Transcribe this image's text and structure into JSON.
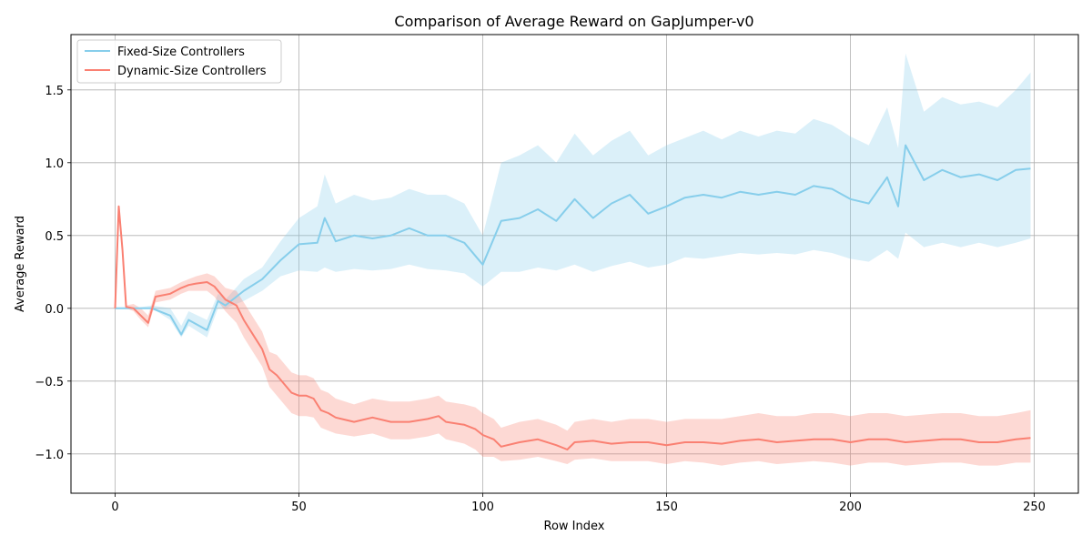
{
  "chart_data": {
    "type": "line",
    "title": "Comparison of Average Reward on GapJumper-v0",
    "xlabel": "Row Index",
    "ylabel": "Average Reward",
    "xlim": [
      -12,
      262
    ],
    "ylim": [
      -1.27,
      1.88
    ],
    "xticks": [
      0,
      50,
      100,
      150,
      200,
      250
    ],
    "yticks": [
      -1.0,
      -0.5,
      0.0,
      0.5,
      1.0,
      1.5
    ],
    "xtick_labels": [
      "0",
      "50",
      "100",
      "150",
      "200",
      "250"
    ],
    "ytick_labels": [
      "−1.0",
      "−0.5",
      "0.0",
      "0.5",
      "1.0",
      "1.5"
    ],
    "grid": true,
    "legend_position": "top-left",
    "colors": {
      "fixed_line": "#87ceeb",
      "fixed_band": "#87ceeb",
      "dynamic_line": "#fa8072",
      "dynamic_band": "#fa8072"
    },
    "series": [
      {
        "name": "Fixed-Size Controllers",
        "x": [
          0,
          5,
          10,
          15,
          18,
          20,
          25,
          28,
          30,
          35,
          40,
          45,
          50,
          55,
          57,
          60,
          65,
          70,
          75,
          80,
          85,
          90,
          95,
          100,
          105,
          110,
          115,
          120,
          125,
          130,
          135,
          140,
          145,
          150,
          155,
          160,
          165,
          170,
          175,
          180,
          185,
          190,
          195,
          200,
          205,
          210,
          213,
          215,
          220,
          225,
          230,
          235,
          240,
          245,
          249
        ],
        "values": [
          0.0,
          0.0,
          0.0,
          -0.05,
          -0.18,
          -0.08,
          -0.15,
          0.05,
          0.02,
          0.12,
          0.2,
          0.33,
          0.44,
          0.45,
          0.62,
          0.46,
          0.5,
          0.48,
          0.5,
          0.55,
          0.5,
          0.5,
          0.45,
          0.3,
          0.6,
          0.62,
          0.68,
          0.6,
          0.75,
          0.62,
          0.72,
          0.78,
          0.65,
          0.7,
          0.76,
          0.78,
          0.76,
          0.8,
          0.78,
          0.8,
          0.78,
          0.84,
          0.82,
          0.75,
          0.72,
          0.9,
          0.7,
          1.12,
          0.88,
          0.95,
          0.9,
          0.92,
          0.88,
          0.95,
          0.96
        ],
        "lower": [
          0.0,
          0.0,
          0.0,
          -0.08,
          -0.2,
          -0.12,
          -0.2,
          0.0,
          0.0,
          0.05,
          0.12,
          0.22,
          0.26,
          0.25,
          0.28,
          0.25,
          0.27,
          0.26,
          0.27,
          0.3,
          0.27,
          0.26,
          0.24,
          0.15,
          0.25,
          0.25,
          0.28,
          0.26,
          0.3,
          0.25,
          0.29,
          0.32,
          0.28,
          0.3,
          0.35,
          0.34,
          0.36,
          0.38,
          0.37,
          0.38,
          0.37,
          0.4,
          0.38,
          0.34,
          0.32,
          0.4,
          0.34,
          0.52,
          0.42,
          0.45,
          0.42,
          0.45,
          0.42,
          0.45,
          0.48
        ],
        "upper": [
          0.0,
          0.0,
          0.02,
          0.0,
          -0.12,
          -0.02,
          -0.08,
          0.1,
          0.06,
          0.2,
          0.28,
          0.46,
          0.62,
          0.7,
          0.92,
          0.72,
          0.78,
          0.74,
          0.76,
          0.82,
          0.78,
          0.78,
          0.72,
          0.5,
          1.0,
          1.05,
          1.12,
          1.0,
          1.2,
          1.05,
          1.15,
          1.22,
          1.05,
          1.12,
          1.17,
          1.22,
          1.16,
          1.22,
          1.18,
          1.22,
          1.2,
          1.3,
          1.26,
          1.18,
          1.12,
          1.38,
          1.1,
          1.75,
          1.35,
          1.45,
          1.4,
          1.42,
          1.38,
          1.5,
          1.62
        ]
      },
      {
        "name": "Dynamic-Size Controllers",
        "x": [
          0,
          1,
          2,
          3,
          5,
          7,
          9,
          11,
          15,
          18,
          20,
          22,
          25,
          27,
          30,
          33,
          35,
          38,
          40,
          42,
          44,
          46,
          48,
          50,
          52,
          54,
          56,
          58,
          60,
          65,
          70,
          75,
          80,
          85,
          88,
          90,
          95,
          98,
          100,
          103,
          105,
          110,
          115,
          120,
          123,
          125,
          130,
          135,
          140,
          145,
          150,
          155,
          160,
          165,
          170,
          175,
          180,
          185,
          190,
          195,
          200,
          205,
          210,
          215,
          220,
          225,
          230,
          235,
          240,
          245,
          249
        ],
        "values": [
          0.0,
          0.7,
          0.4,
          0.01,
          0.0,
          -0.05,
          -0.1,
          0.08,
          0.1,
          0.14,
          0.16,
          0.17,
          0.18,
          0.15,
          0.06,
          0.02,
          -0.08,
          -0.2,
          -0.28,
          -0.42,
          -0.46,
          -0.52,
          -0.58,
          -0.6,
          -0.6,
          -0.62,
          -0.7,
          -0.72,
          -0.75,
          -0.78,
          -0.75,
          -0.78,
          -0.78,
          -0.76,
          -0.74,
          -0.78,
          -0.8,
          -0.83,
          -0.87,
          -0.9,
          -0.95,
          -0.92,
          -0.9,
          -0.94,
          -0.97,
          -0.92,
          -0.91,
          -0.93,
          -0.92,
          -0.92,
          -0.94,
          -0.92,
          -0.92,
          -0.93,
          -0.91,
          -0.9,
          -0.92,
          -0.91,
          -0.9,
          -0.9,
          -0.92,
          -0.9,
          -0.9,
          -0.92,
          -0.91,
          -0.9,
          -0.9,
          -0.92,
          -0.92,
          -0.9,
          -0.89
        ],
        "lower": [
          0.0,
          0.7,
          0.4,
          0.0,
          -0.02,
          -0.08,
          -0.13,
          0.04,
          0.06,
          0.1,
          0.12,
          0.12,
          0.12,
          0.08,
          -0.02,
          -0.1,
          -0.2,
          -0.32,
          -0.4,
          -0.54,
          -0.6,
          -0.66,
          -0.72,
          -0.74,
          -0.74,
          -0.75,
          -0.82,
          -0.84,
          -0.86,
          -0.88,
          -0.86,
          -0.9,
          -0.9,
          -0.88,
          -0.86,
          -0.9,
          -0.93,
          -0.97,
          -1.02,
          -1.02,
          -1.05,
          -1.04,
          -1.02,
          -1.05,
          -1.07,
          -1.04,
          -1.03,
          -1.05,
          -1.05,
          -1.05,
          -1.07,
          -1.05,
          -1.06,
          -1.08,
          -1.06,
          -1.05,
          -1.07,
          -1.06,
          -1.05,
          -1.06,
          -1.08,
          -1.06,
          -1.06,
          -1.08,
          -1.07,
          -1.06,
          -1.06,
          -1.08,
          -1.08,
          -1.06,
          -1.06
        ],
        "upper": [
          0.0,
          0.7,
          0.4,
          0.02,
          0.03,
          0.0,
          -0.05,
          0.12,
          0.14,
          0.18,
          0.2,
          0.22,
          0.24,
          0.22,
          0.14,
          0.12,
          0.04,
          -0.08,
          -0.16,
          -0.3,
          -0.32,
          -0.38,
          -0.44,
          -0.46,
          -0.46,
          -0.48,
          -0.56,
          -0.58,
          -0.62,
          -0.66,
          -0.62,
          -0.64,
          -0.64,
          -0.62,
          -0.6,
          -0.64,
          -0.66,
          -0.68,
          -0.72,
          -0.76,
          -0.82,
          -0.78,
          -0.76,
          -0.8,
          -0.84,
          -0.78,
          -0.76,
          -0.78,
          -0.76,
          -0.76,
          -0.78,
          -0.76,
          -0.76,
          -0.76,
          -0.74,
          -0.72,
          -0.74,
          -0.74,
          -0.72,
          -0.72,
          -0.74,
          -0.72,
          -0.72,
          -0.74,
          -0.73,
          -0.72,
          -0.72,
          -0.74,
          -0.74,
          -0.72,
          -0.7
        ]
      }
    ]
  }
}
